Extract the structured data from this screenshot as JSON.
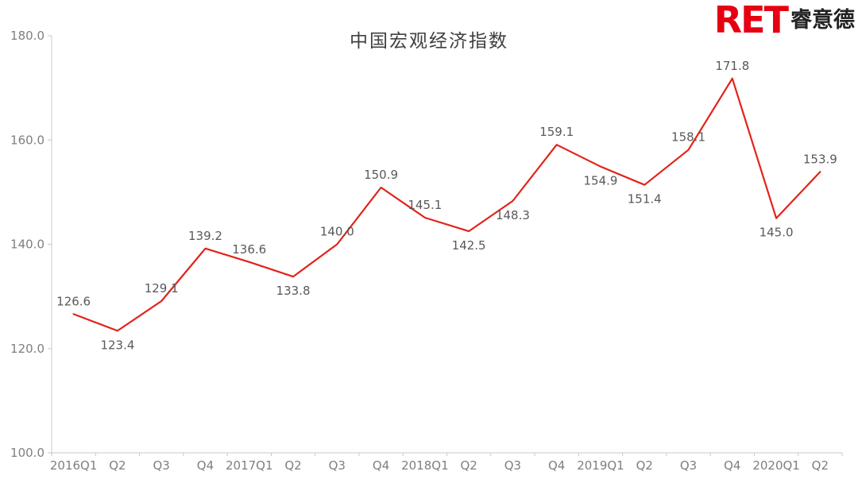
{
  "logo": {
    "latin": "RET",
    "chinese": "睿意德",
    "brand_color": "#e60012"
  },
  "chart_data": {
    "type": "line",
    "title": "中国宏观经济指数",
    "categories": [
      "2016Q1",
      "Q2",
      "Q3",
      "Q4",
      "2017Q1",
      "Q2",
      "Q3",
      "Q4",
      "2018Q1",
      "Q2",
      "Q3",
      "Q4",
      "2019Q1",
      "Q2",
      "Q3",
      "Q4",
      "2020Q1",
      "Q2"
    ],
    "values": [
      126.6,
      123.4,
      129.1,
      139.2,
      136.6,
      133.8,
      140.0,
      150.9,
      145.1,
      142.5,
      148.3,
      159.1,
      154.9,
      151.4,
      158.1,
      171.8,
      145.0,
      153.9
    ],
    "xlabel": "",
    "ylabel": "",
    "ylim": [
      100,
      180
    ],
    "y_ticks": [
      100,
      120,
      140,
      160,
      180
    ],
    "tick_decimals": 1,
    "grid": false,
    "legend": "none",
    "label_side": [
      "above",
      "below",
      "above",
      "above",
      "above",
      "below",
      "above",
      "above",
      "above",
      "below",
      "below",
      "above",
      "below",
      "below",
      "above",
      "above",
      "below",
      "above"
    ],
    "colors": {
      "line": "#e2231a",
      "axis": "#c8c8c8",
      "tick_label": "#7f7f7f",
      "data_label": "#595959",
      "title": "#404040"
    }
  }
}
